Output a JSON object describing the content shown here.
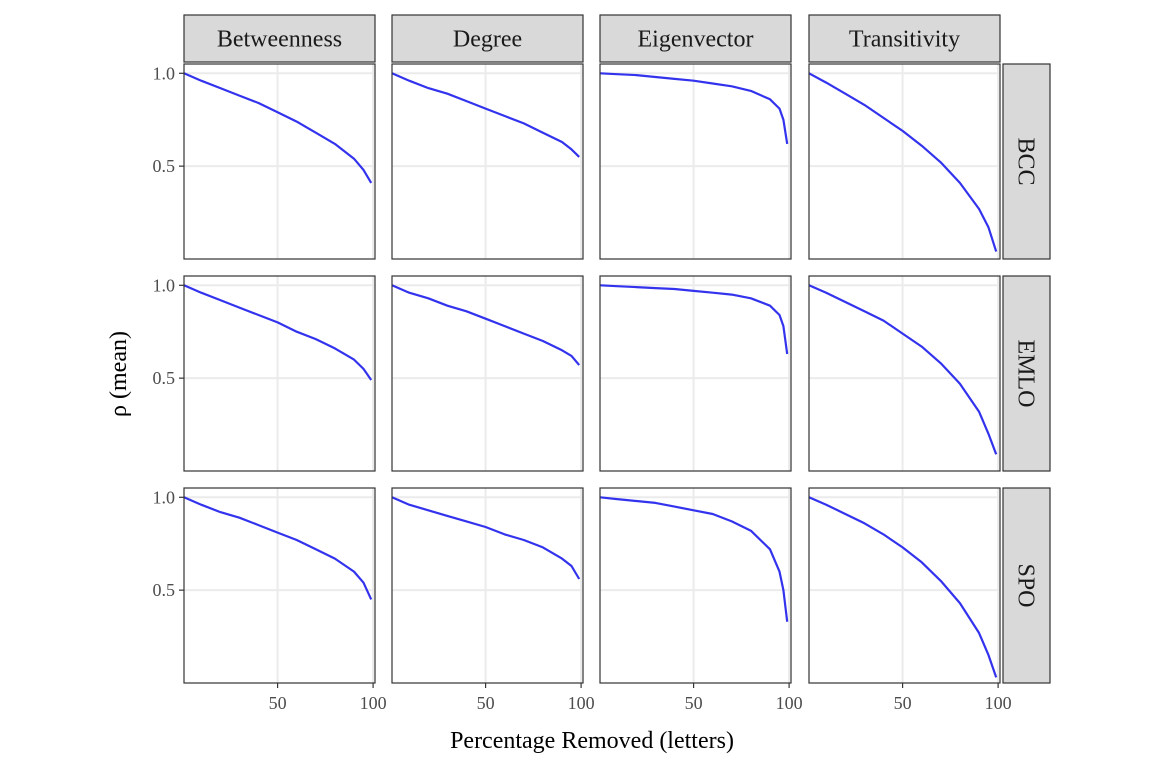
{
  "chart_data": {
    "type": "line",
    "xlabel": "Percentage Removed (letters)",
    "ylabel": "ρ (mean)",
    "x_ticks": [
      "50",
      "100"
    ],
    "y_ticks": [
      "0.5",
      "1.0"
    ],
    "xlim": [
      1,
      101
    ],
    "ylim": [
      0.0,
      1.05
    ],
    "grid": true,
    "line_color": "#3333ee",
    "columns": [
      "Betweenness",
      "Degree",
      "Eigenvector",
      "Transitivity"
    ],
    "rows": [
      "BCC",
      "EMLO",
      "SPO"
    ],
    "panels": [
      {
        "row": "BCC",
        "col": "Betweenness",
        "x": [
          1,
          10,
          20,
          30,
          40,
          50,
          60,
          70,
          80,
          90,
          95,
          99
        ],
        "y": [
          1.0,
          0.96,
          0.92,
          0.88,
          0.84,
          0.79,
          0.74,
          0.68,
          0.62,
          0.54,
          0.48,
          0.41
        ]
      },
      {
        "row": "BCC",
        "col": "Degree",
        "x": [
          1,
          10,
          20,
          30,
          40,
          50,
          60,
          70,
          80,
          90,
          95,
          99
        ],
        "y": [
          1.0,
          0.96,
          0.92,
          0.89,
          0.85,
          0.81,
          0.77,
          0.73,
          0.68,
          0.63,
          0.59,
          0.55
        ]
      },
      {
        "row": "BCC",
        "col": "Eigenvector",
        "x": [
          1,
          10,
          20,
          30,
          40,
          50,
          60,
          70,
          80,
          90,
          95,
          97,
          99
        ],
        "y": [
          1.0,
          0.995,
          0.99,
          0.98,
          0.97,
          0.96,
          0.945,
          0.93,
          0.905,
          0.86,
          0.81,
          0.75,
          0.62
        ]
      },
      {
        "row": "BCC",
        "col": "Transitivity",
        "x": [
          1,
          10,
          20,
          30,
          40,
          50,
          60,
          70,
          80,
          90,
          95,
          99
        ],
        "y": [
          1.0,
          0.95,
          0.89,
          0.83,
          0.76,
          0.69,
          0.61,
          0.52,
          0.41,
          0.27,
          0.17,
          0.04
        ]
      },
      {
        "row": "EMLO",
        "col": "Betweenness",
        "x": [
          1,
          10,
          20,
          30,
          40,
          50,
          60,
          70,
          80,
          90,
          95,
          99
        ],
        "y": [
          1.0,
          0.96,
          0.92,
          0.88,
          0.84,
          0.8,
          0.75,
          0.71,
          0.66,
          0.6,
          0.55,
          0.49
        ]
      },
      {
        "row": "EMLO",
        "col": "Degree",
        "x": [
          1,
          10,
          20,
          30,
          40,
          50,
          60,
          70,
          80,
          90,
          95,
          99
        ],
        "y": [
          1.0,
          0.96,
          0.93,
          0.89,
          0.86,
          0.82,
          0.78,
          0.74,
          0.7,
          0.65,
          0.62,
          0.57
        ]
      },
      {
        "row": "EMLO",
        "col": "Eigenvector",
        "x": [
          1,
          10,
          20,
          30,
          40,
          50,
          60,
          70,
          80,
          90,
          95,
          97,
          99
        ],
        "y": [
          1.0,
          0.995,
          0.99,
          0.985,
          0.98,
          0.97,
          0.96,
          0.95,
          0.93,
          0.89,
          0.84,
          0.78,
          0.63
        ]
      },
      {
        "row": "EMLO",
        "col": "Transitivity",
        "x": [
          1,
          10,
          20,
          30,
          40,
          50,
          60,
          70,
          80,
          90,
          95,
          99
        ],
        "y": [
          1.0,
          0.96,
          0.91,
          0.86,
          0.81,
          0.74,
          0.67,
          0.58,
          0.47,
          0.32,
          0.2,
          0.09
        ]
      },
      {
        "row": "SPO",
        "col": "Betweenness",
        "x": [
          1,
          10,
          20,
          30,
          40,
          50,
          60,
          70,
          80,
          90,
          95,
          99
        ],
        "y": [
          1.0,
          0.96,
          0.92,
          0.89,
          0.85,
          0.81,
          0.77,
          0.72,
          0.67,
          0.6,
          0.54,
          0.45
        ]
      },
      {
        "row": "SPO",
        "col": "Degree",
        "x": [
          1,
          10,
          20,
          30,
          40,
          50,
          60,
          70,
          80,
          90,
          95,
          99
        ],
        "y": [
          1.0,
          0.96,
          0.93,
          0.9,
          0.87,
          0.84,
          0.8,
          0.77,
          0.73,
          0.67,
          0.63,
          0.56
        ]
      },
      {
        "row": "SPO",
        "col": "Eigenvector",
        "x": [
          1,
          10,
          20,
          30,
          40,
          50,
          60,
          70,
          80,
          90,
          95,
          97,
          99
        ],
        "y": [
          1.0,
          0.99,
          0.98,
          0.97,
          0.95,
          0.93,
          0.91,
          0.87,
          0.82,
          0.72,
          0.6,
          0.5,
          0.33
        ]
      },
      {
        "row": "SPO",
        "col": "Transitivity",
        "x": [
          1,
          10,
          20,
          30,
          40,
          50,
          60,
          70,
          80,
          90,
          95,
          99
        ],
        "y": [
          1.0,
          0.96,
          0.91,
          0.86,
          0.8,
          0.73,
          0.65,
          0.55,
          0.43,
          0.27,
          0.15,
          0.03
        ]
      }
    ]
  }
}
